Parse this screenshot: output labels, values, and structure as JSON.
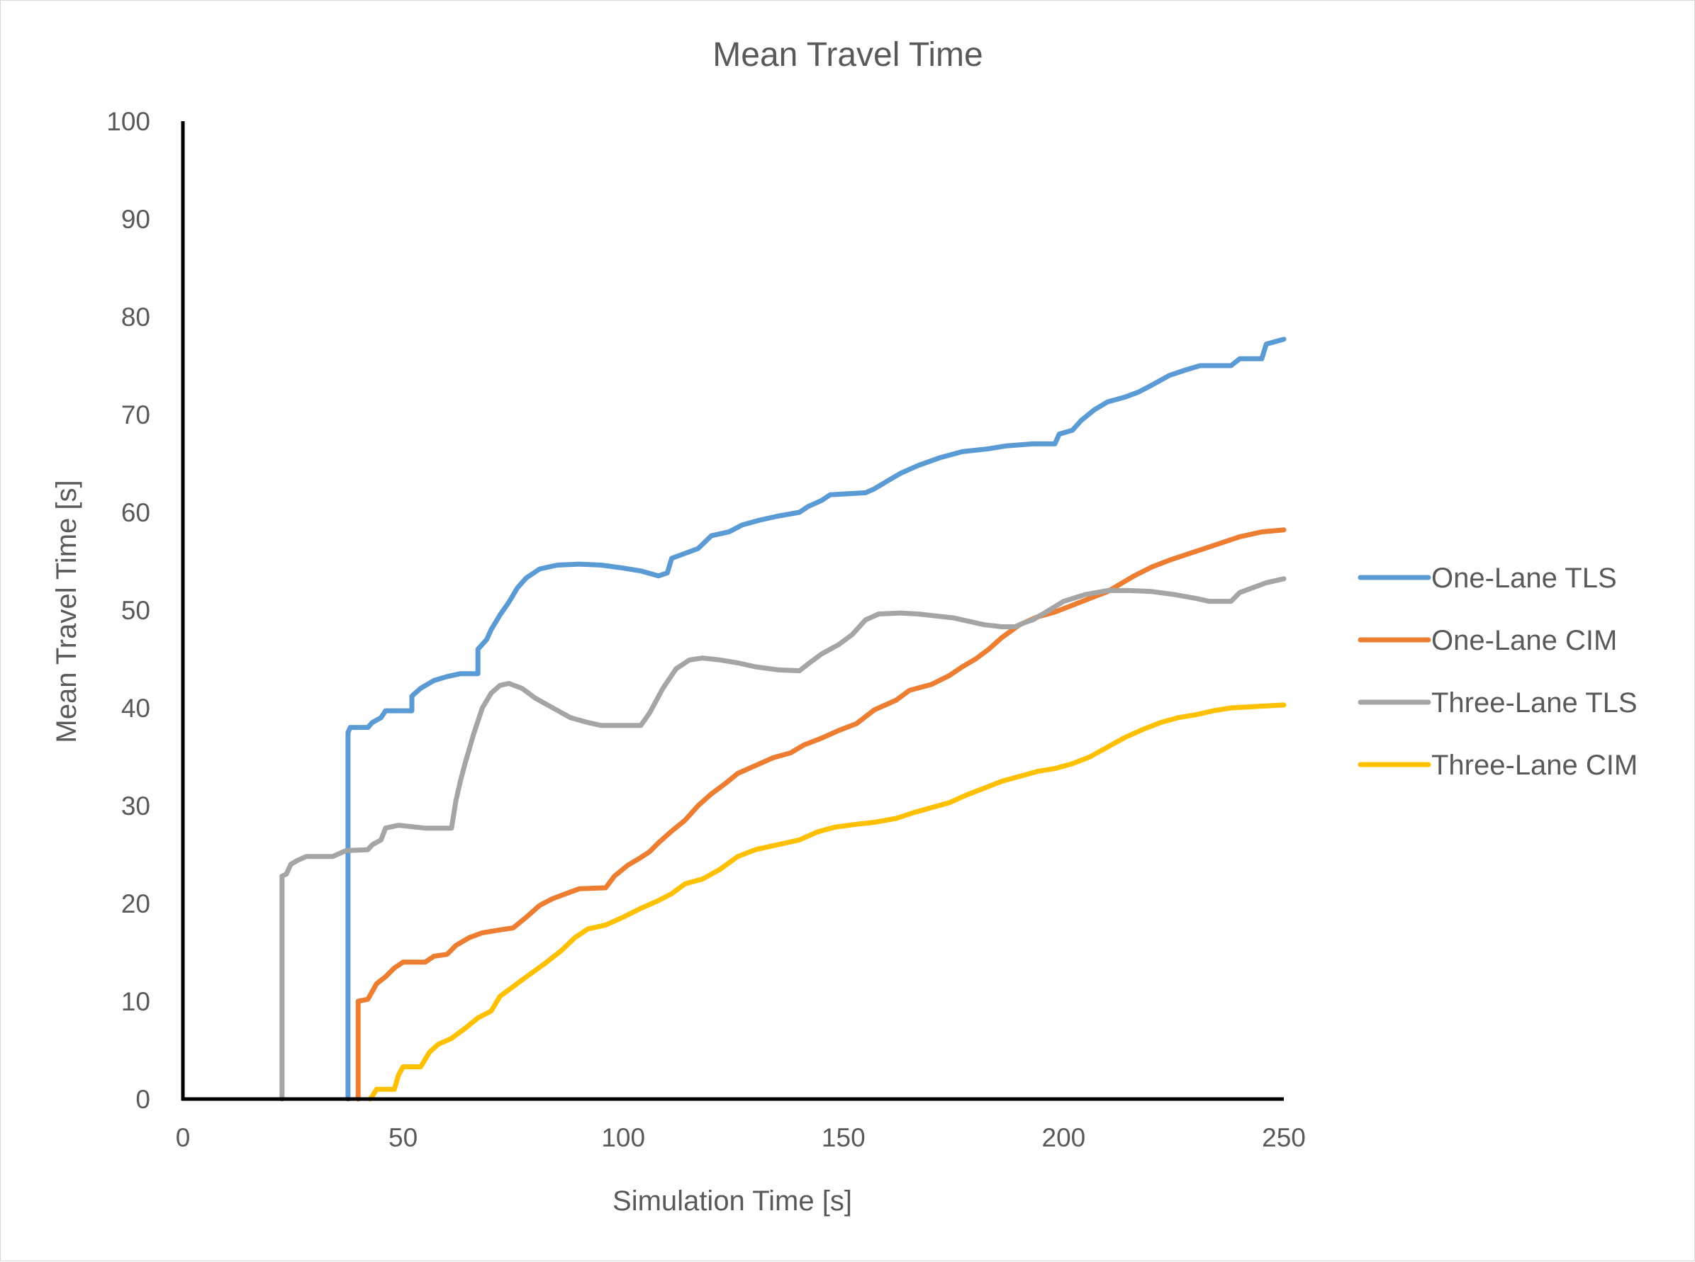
{
  "chart_data": {
    "type": "line",
    "title": "Mean Travel Time",
    "xlabel": "Simulation Time [s]",
    "ylabel": "Mean Travel Time [s]",
    "xlim": [
      0,
      250
    ],
    "ylim": [
      0,
      100
    ],
    "x_ticks": [
      0,
      50,
      100,
      150,
      200,
      250
    ],
    "y_ticks": [
      0,
      10,
      20,
      30,
      40,
      50,
      60,
      70,
      80,
      90,
      100
    ],
    "grid": false,
    "legend_position": "right",
    "series": [
      {
        "name": "One-Lane TLS",
        "color": "#5b9bd5",
        "points": [
          [
            37.5,
            0
          ],
          [
            37.5,
            37.5
          ],
          [
            38,
            38
          ],
          [
            42,
            38
          ],
          [
            43,
            38.5
          ],
          [
            45,
            39
          ],
          [
            46,
            39.7
          ],
          [
            52,
            39.7
          ],
          [
            52,
            41.2
          ],
          [
            54,
            42
          ],
          [
            57,
            42.8
          ],
          [
            60,
            43.2
          ],
          [
            63,
            43.5
          ],
          [
            67,
            43.5
          ],
          [
            67,
            46
          ],
          [
            68,
            46.5
          ],
          [
            69,
            47
          ],
          [
            70,
            48
          ],
          [
            72,
            49.5
          ],
          [
            74,
            50.8
          ],
          [
            76,
            52.3
          ],
          [
            78,
            53.3
          ],
          [
            81,
            54.2
          ],
          [
            85,
            54.6
          ],
          [
            90,
            54.7
          ],
          [
            95,
            54.6
          ],
          [
            100,
            54.3
          ],
          [
            104,
            54
          ],
          [
            108,
            53.5
          ],
          [
            110,
            53.8
          ],
          [
            111,
            55.3
          ],
          [
            114,
            55.8
          ],
          [
            117,
            56.3
          ],
          [
            120,
            57.6
          ],
          [
            124,
            58
          ],
          [
            127,
            58.7
          ],
          [
            131,
            59.2
          ],
          [
            135,
            59.6
          ],
          [
            140,
            60
          ],
          [
            142,
            60.6
          ],
          [
            145,
            61.2
          ],
          [
            147,
            61.8
          ],
          [
            155,
            62
          ],
          [
            157,
            62.4
          ],
          [
            160,
            63.2
          ],
          [
            163,
            64
          ],
          [
            167,
            64.8
          ],
          [
            172,
            65.6
          ],
          [
            177,
            66.2
          ],
          [
            183,
            66.5
          ],
          [
            187,
            66.8
          ],
          [
            193,
            67
          ],
          [
            198,
            67
          ],
          [
            199,
            68
          ],
          [
            202,
            68.4
          ],
          [
            204,
            69.4
          ],
          [
            207,
            70.5
          ],
          [
            210,
            71.3
          ],
          [
            214,
            71.8
          ],
          [
            217,
            72.3
          ],
          [
            220,
            73
          ],
          [
            224,
            74
          ],
          [
            228,
            74.6
          ],
          [
            231,
            75
          ],
          [
            238,
            75
          ],
          [
            240,
            75.7
          ],
          [
            245,
            75.7
          ],
          [
            246,
            77.2
          ],
          [
            250,
            77.7
          ]
        ]
      },
      {
        "name": "One-Lane CIM",
        "color": "#ed7d31",
        "points": [
          [
            39.8,
            0
          ],
          [
            39.8,
            10
          ],
          [
            42,
            10.2
          ],
          [
            44,
            11.8
          ],
          [
            46,
            12.5
          ],
          [
            48,
            13.4
          ],
          [
            50,
            14
          ],
          [
            55,
            14
          ],
          [
            57,
            14.6
          ],
          [
            60,
            14.8
          ],
          [
            62,
            15.7
          ],
          [
            65,
            16.5
          ],
          [
            68,
            17
          ],
          [
            72,
            17.3
          ],
          [
            75,
            17.5
          ],
          [
            78,
            18.6
          ],
          [
            81,
            19.8
          ],
          [
            84,
            20.5
          ],
          [
            87,
            21
          ],
          [
            90,
            21.5
          ],
          [
            96,
            21.6
          ],
          [
            98,
            22.8
          ],
          [
            101,
            23.9
          ],
          [
            104,
            24.7
          ],
          [
            106,
            25.3
          ],
          [
            108,
            26.2
          ],
          [
            111,
            27.4
          ],
          [
            114,
            28.5
          ],
          [
            117,
            30
          ],
          [
            120,
            31.2
          ],
          [
            123,
            32.2
          ],
          [
            126,
            33.3
          ],
          [
            130,
            34.1
          ],
          [
            134,
            34.9
          ],
          [
            138,
            35.4
          ],
          [
            141,
            36.2
          ],
          [
            145,
            36.9
          ],
          [
            149,
            37.7
          ],
          [
            153,
            38.4
          ],
          [
            157,
            39.8
          ],
          [
            162,
            40.8
          ],
          [
            165,
            41.8
          ],
          [
            170,
            42.4
          ],
          [
            174,
            43.3
          ],
          [
            177,
            44.2
          ],
          [
            180,
            45
          ],
          [
            183,
            46
          ],
          [
            186,
            47.2
          ],
          [
            190,
            48.5
          ],
          [
            194,
            49.3
          ],
          [
            198,
            49.8
          ],
          [
            202,
            50.5
          ],
          [
            206,
            51.2
          ],
          [
            210,
            51.9
          ],
          [
            213,
            52.7
          ],
          [
            216,
            53.5
          ],
          [
            220,
            54.4
          ],
          [
            224,
            55.1
          ],
          [
            228,
            55.7
          ],
          [
            232,
            56.3
          ],
          [
            236,
            56.9
          ],
          [
            240,
            57.5
          ],
          [
            245,
            58
          ],
          [
            250,
            58.2
          ]
        ]
      },
      {
        "name": "Three-Lane TLS",
        "color": "#a5a5a5",
        "points": [
          [
            22.5,
            0
          ],
          [
            22.5,
            22.8
          ],
          [
            23.5,
            23
          ],
          [
            24.5,
            24
          ],
          [
            26,
            24.4
          ],
          [
            28,
            24.8
          ],
          [
            34,
            24.8
          ],
          [
            37,
            25.4
          ],
          [
            42,
            25.5
          ],
          [
            43,
            26
          ],
          [
            45,
            26.5
          ],
          [
            46,
            27.7
          ],
          [
            49,
            28
          ],
          [
            55,
            27.7
          ],
          [
            61,
            27.7
          ],
          [
            62,
            30.5
          ],
          [
            63,
            32.5
          ],
          [
            64,
            34.2
          ],
          [
            66,
            37.3
          ],
          [
            68,
            40
          ],
          [
            70,
            41.5
          ],
          [
            72,
            42.3
          ],
          [
            74,
            42.5
          ],
          [
            77,
            42
          ],
          [
            80,
            41
          ],
          [
            84,
            40
          ],
          [
            88,
            39
          ],
          [
            92,
            38.5
          ],
          [
            95,
            38.2
          ],
          [
            98,
            38.2
          ],
          [
            104,
            38.2
          ],
          [
            106,
            39.5
          ],
          [
            109,
            42
          ],
          [
            112,
            44
          ],
          [
            115,
            44.9
          ],
          [
            118,
            45.1
          ],
          [
            122,
            44.9
          ],
          [
            126,
            44.6
          ],
          [
            130,
            44.2
          ],
          [
            135,
            43.9
          ],
          [
            140,
            43.8
          ],
          [
            142,
            44.5
          ],
          [
            145,
            45.5
          ],
          [
            149,
            46.5
          ],
          [
            152,
            47.5
          ],
          [
            155,
            49
          ],
          [
            158,
            49.6
          ],
          [
            163,
            49.7
          ],
          [
            167,
            49.6
          ],
          [
            171,
            49.4
          ],
          [
            175,
            49.2
          ],
          [
            178,
            48.9
          ],
          [
            182,
            48.5
          ],
          [
            186,
            48.3
          ],
          [
            189,
            48.3
          ],
          [
            191,
            48.7
          ],
          [
            193,
            49
          ],
          [
            196,
            49.8
          ],
          [
            200,
            50.9
          ],
          [
            205,
            51.6
          ],
          [
            210,
            52
          ],
          [
            215,
            52
          ],
          [
            220,
            51.9
          ],
          [
            225,
            51.6
          ],
          [
            230,
            51.2
          ],
          [
            233,
            50.9
          ],
          [
            238,
            50.9
          ],
          [
            240,
            51.8
          ],
          [
            243,
            52.3
          ],
          [
            246,
            52.8
          ],
          [
            250,
            53.2
          ]
        ]
      },
      {
        "name": "Three-Lane CIM",
        "color": "#ffc000",
        "points": [
          [
            42.5,
            0
          ],
          [
            43,
            0.3
          ],
          [
            44,
            1
          ],
          [
            48,
            1
          ],
          [
            49,
            2.5
          ],
          [
            50,
            3.3
          ],
          [
            54,
            3.3
          ],
          [
            56,
            4.8
          ],
          [
            58,
            5.6
          ],
          [
            61,
            6.2
          ],
          [
            64,
            7.2
          ],
          [
            67,
            8.3
          ],
          [
            70,
            9
          ],
          [
            72,
            10.5
          ],
          [
            75,
            11.5
          ],
          [
            78,
            12.5
          ],
          [
            82,
            13.8
          ],
          [
            86,
            15.2
          ],
          [
            89,
            16.5
          ],
          [
            92,
            17.4
          ],
          [
            96,
            17.8
          ],
          [
            100,
            18.6
          ],
          [
            104,
            19.5
          ],
          [
            108,
            20.3
          ],
          [
            111,
            21
          ],
          [
            114,
            22
          ],
          [
            118,
            22.5
          ],
          [
            122,
            23.5
          ],
          [
            126,
            24.8
          ],
          [
            130,
            25.5
          ],
          [
            135,
            26
          ],
          [
            140,
            26.5
          ],
          [
            144,
            27.3
          ],
          [
            148,
            27.8
          ],
          [
            153,
            28.1
          ],
          [
            157,
            28.3
          ],
          [
            162,
            28.7
          ],
          [
            166,
            29.3
          ],
          [
            170,
            29.8
          ],
          [
            174,
            30.3
          ],
          [
            178,
            31.1
          ],
          [
            182,
            31.8
          ],
          [
            186,
            32.5
          ],
          [
            190,
            33
          ],
          [
            194,
            33.5
          ],
          [
            198,
            33.8
          ],
          [
            202,
            34.3
          ],
          [
            206,
            35
          ],
          [
            210,
            36
          ],
          [
            214,
            37
          ],
          [
            218,
            37.8
          ],
          [
            222,
            38.5
          ],
          [
            226,
            39
          ],
          [
            230,
            39.3
          ],
          [
            234,
            39.7
          ],
          [
            238,
            40
          ],
          [
            242,
            40.1
          ],
          [
            246,
            40.2
          ],
          [
            250,
            40.3
          ]
        ]
      }
    ]
  }
}
